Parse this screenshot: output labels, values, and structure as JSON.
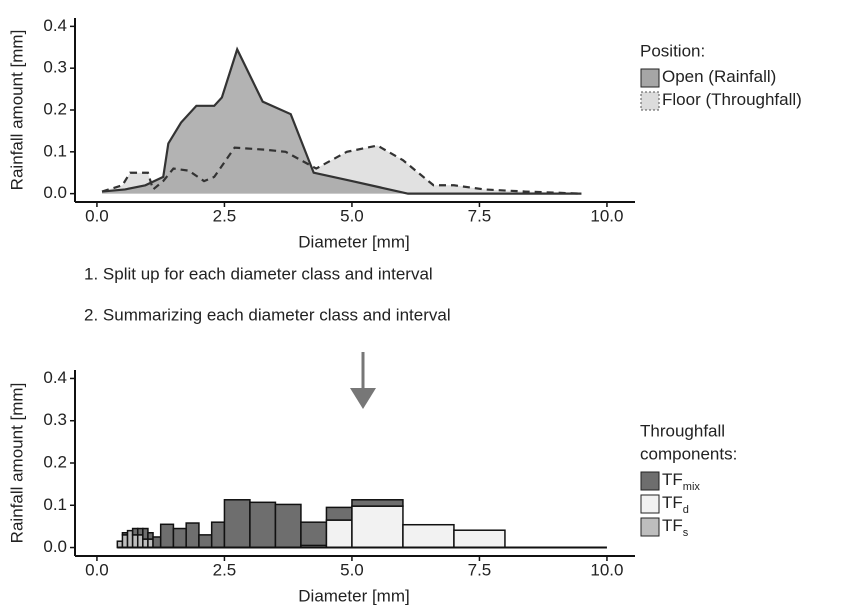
{
  "chart_data": [
    {
      "type": "area",
      "x_label": "Diameter [mm]",
      "y_label": "Rainfall amount [mm]",
      "xlim": [
        -0.43,
        10.55
      ],
      "ylim": [
        -0.02,
        0.42
      ],
      "xticks": [
        {
          "value": 0,
          "label": "0.0"
        },
        {
          "value": 2.5,
          "label": "2.5"
        },
        {
          "value": 5,
          "label": "5.0"
        },
        {
          "value": 7.5,
          "label": "7.5"
        },
        {
          "value": 10,
          "label": "10.0"
        }
      ],
      "yticks": [
        {
          "value": 0,
          "label": "0.0"
        },
        {
          "value": 0.1,
          "label": "0.1"
        },
        {
          "value": 0.2,
          "label": "0.2"
        },
        {
          "value": 0.3,
          "label": "0.3"
        },
        {
          "value": 0.4,
          "label": "0.4"
        }
      ],
      "legend_title": [
        "Position:"
      ],
      "series": [
        {
          "name": "Open (Rainfall)",
          "color": "#a6a6a6",
          "line": "solid",
          "x": [
            0.1,
            0.55,
            0.95,
            1.3,
            1.4,
            1.65,
            1.95,
            2.3,
            2.45,
            2.75,
            3.25,
            3.8,
            4.25,
            5.0,
            6.1,
            7.0,
            8.0,
            9.5
          ],
          "values": [
            0.005,
            0.01,
            0.02,
            0.04,
            0.12,
            0.17,
            0.21,
            0.21,
            0.23,
            0.345,
            0.22,
            0.19,
            0.05,
            0.03,
            0.0,
            0.0,
            0.0,
            0.0
          ]
        },
        {
          "name": "Floor (Throughfall)",
          "color": "#dcdcdc",
          "line": "dashed",
          "x": [
            0.1,
            0.5,
            0.65,
            1.0,
            1.1,
            1.3,
            1.5,
            1.8,
            2.1,
            2.3,
            2.7,
            3.3,
            3.7,
            4.3,
            4.9,
            5.5,
            6.0,
            6.6,
            7.0,
            7.6,
            8.4,
            9.5
          ],
          "values": [
            0.005,
            0.02,
            0.05,
            0.05,
            0.01,
            0.03,
            0.06,
            0.055,
            0.03,
            0.04,
            0.11,
            0.105,
            0.1,
            0.06,
            0.1,
            0.115,
            0.08,
            0.02,
            0.02,
            0.01,
            0.005,
            0.0
          ]
        }
      ]
    },
    {
      "type": "stacked-histogram",
      "x_label": "Diameter [mm]",
      "y_label": "Rainfall amount [mm]",
      "xlim": [
        -0.43,
        10.55
      ],
      "ylim": [
        -0.02,
        0.42
      ],
      "xticks": [
        {
          "value": 0,
          "label": "0.0"
        },
        {
          "value": 2.5,
          "label": "2.5"
        },
        {
          "value": 5,
          "label": "5.0"
        },
        {
          "value": 7.5,
          "label": "7.5"
        },
        {
          "value": 10,
          "label": "10.0"
        }
      ],
      "yticks": [
        {
          "value": 0,
          "label": "0.0"
        },
        {
          "value": 0.1,
          "label": "0.1"
        },
        {
          "value": 0.2,
          "label": "0.2"
        },
        {
          "value": 0.3,
          "label": "0.3"
        },
        {
          "value": 0.4,
          "label": "0.4"
        }
      ],
      "legend_title": [
        "Throughfall",
        "components:"
      ],
      "bins": [
        0.4,
        0.5,
        0.6,
        0.7,
        0.8,
        0.9,
        1.0,
        1.1,
        1.25,
        1.5,
        1.75,
        2.0,
        2.25,
        2.5,
        3.0,
        3.5,
        4.0,
        4.5,
        5.0,
        6.0,
        7.0,
        8.0
      ],
      "series": [
        {
          "name": "TF",
          "subscript": "mix",
          "color": "#6e6e6e",
          "values": [
            0,
            0.005,
            0,
            0.015,
            0.015,
            0.025,
            0.015,
            0.025,
            0.055,
            0.045,
            0.058,
            0.03,
            0.06,
            0.113,
            0.107,
            0.102,
            0.055,
            0.03,
            0.015,
            0,
            0
          ]
        },
        {
          "name": "TF",
          "subscript": "d",
          "color": "#f2f2f2",
          "values": [
            0,
            0,
            0,
            0,
            0,
            0,
            0,
            0,
            0,
            0,
            0,
            0,
            0,
            0,
            0,
            0,
            0.005,
            0.065,
            0.098,
            0.054,
            0.041
          ]
        },
        {
          "name": "TF",
          "subscript": "s",
          "color": "#bdbdbd",
          "values": [
            0.015,
            0.03,
            0.04,
            0.03,
            0.03,
            0.02,
            0.02,
            0,
            0,
            0,
            0,
            0,
            0,
            0,
            0,
            0,
            0,
            0,
            0,
            0,
            0
          ]
        }
      ]
    }
  ],
  "steps": [
    "1. Split up for each diameter class and interval",
    "2. Summarizing each diameter class and interval"
  ]
}
